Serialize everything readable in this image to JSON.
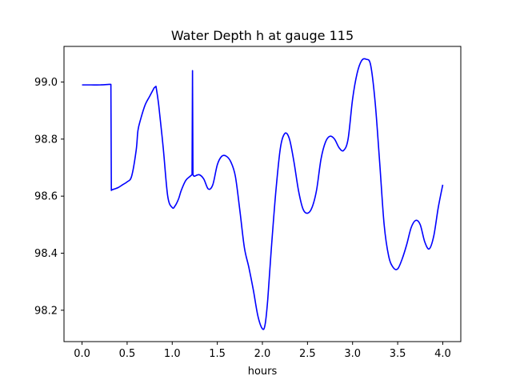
{
  "chart_data": {
    "type": "line",
    "title": "Water Depth h at gauge 115",
    "xlabel": "hours",
    "ylabel": "",
    "xlim": [
      -0.2,
      4.2
    ],
    "ylim": [
      98.09,
      99.125
    ],
    "xticks": [
      0.0,
      0.5,
      1.0,
      1.5,
      2.0,
      2.5,
      3.0,
      3.5,
      4.0
    ],
    "xtick_labels": [
      "0.0",
      "0.5",
      "1.0",
      "1.5",
      "2.0",
      "2.5",
      "3.0",
      "3.5",
      "4.0"
    ],
    "yticks": [
      98.2,
      98.4,
      98.6,
      98.8,
      99.0
    ],
    "ytick_labels": [
      "98.2",
      "98.4",
      "98.6",
      "98.8",
      "99.0"
    ],
    "grid": false,
    "legend": "none",
    "series": [
      {
        "color": "#0000ff",
        "x": [
          0.0,
          0.1,
          0.2,
          0.3,
          0.32,
          0.325,
          0.33,
          0.4,
          0.45,
          0.5,
          0.55,
          0.6,
          0.62,
          0.65,
          0.7,
          0.75,
          0.8,
          0.82,
          0.85,
          0.9,
          0.95,
          1.0,
          1.03,
          1.07,
          1.1,
          1.15,
          1.2,
          1.22,
          1.225,
          1.23,
          1.24,
          1.25,
          1.3,
          1.35,
          1.4,
          1.45,
          1.5,
          1.55,
          1.6,
          1.65,
          1.7,
          1.75,
          1.8,
          1.85,
          1.9,
          1.95,
          2.0,
          2.03,
          2.06,
          2.1,
          2.15,
          2.2,
          2.25,
          2.3,
          2.35,
          2.4,
          2.45,
          2.5,
          2.55,
          2.6,
          2.65,
          2.7,
          2.75,
          2.8,
          2.85,
          2.9,
          2.95,
          3.0,
          3.05,
          3.1,
          3.15,
          3.2,
          3.25,
          3.3,
          3.35,
          3.4,
          3.45,
          3.5,
          3.55,
          3.6,
          3.65,
          3.7,
          3.75,
          3.8,
          3.85,
          3.9,
          3.95,
          4.0
        ],
        "y": [
          98.99,
          98.99,
          98.99,
          98.992,
          98.992,
          98.62,
          98.622,
          98.63,
          98.64,
          98.65,
          98.67,
          98.76,
          98.83,
          98.87,
          98.92,
          98.95,
          98.98,
          98.985,
          98.92,
          98.77,
          98.6,
          98.56,
          98.565,
          98.59,
          98.62,
          98.655,
          98.67,
          98.675,
          99.04,
          98.675,
          98.67,
          98.67,
          98.675,
          98.66,
          98.625,
          98.64,
          98.71,
          98.74,
          98.74,
          98.72,
          98.67,
          98.55,
          98.42,
          98.35,
          98.27,
          98.18,
          98.135,
          98.15,
          98.24,
          98.42,
          98.62,
          98.77,
          98.82,
          98.8,
          98.72,
          98.62,
          98.555,
          98.54,
          98.56,
          98.62,
          98.73,
          98.79,
          98.81,
          98.8,
          98.77,
          98.76,
          98.8,
          98.94,
          99.03,
          99.075,
          99.08,
          99.06,
          98.93,
          98.72,
          98.5,
          98.39,
          98.35,
          98.345,
          98.38,
          98.43,
          98.49,
          98.515,
          98.5,
          98.44,
          98.415,
          98.46,
          98.56,
          98.64
        ]
      }
    ]
  }
}
